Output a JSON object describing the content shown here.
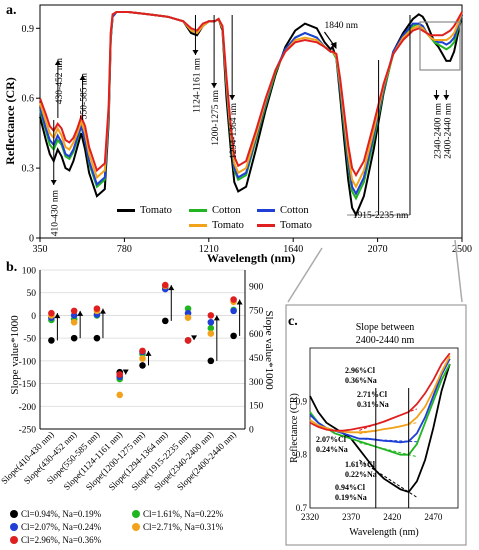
{
  "panels": {
    "a": {
      "label": "a."
    },
    "b": {
      "label": "b."
    },
    "c": {
      "label": "c."
    }
  },
  "chart_data": [
    {
      "type": "line",
      "panel": "a",
      "xlabel": "Wavelength (nm)",
      "ylabel": "Reflectance (CR)",
      "xlim": [
        350,
        2500
      ],
      "ylim": [
        0,
        1.0
      ],
      "xticks": [
        "350",
        "780",
        "1210",
        "1640",
        "2070",
        "2500"
      ],
      "yticks": [
        "0",
        "0.3",
        "0.6",
        "0.9"
      ],
      "legend": [
        {
          "name": "Tomato",
          "color": "#000000"
        },
        {
          "name": "Cotton",
          "color": "#21b521"
        },
        {
          "name": "Cotton",
          "color": "#1f3fd6"
        },
        {
          "name": "Tomato",
          "color": "#f2a21b"
        },
        {
          "name": "Tomato",
          "color": "#e02020"
        }
      ],
      "annotations": [
        {
          "text": "410-430 nm",
          "x": 420
        },
        {
          "text": "430-452 nm",
          "x": 441
        },
        {
          "text": "550-585 nm",
          "x": 567
        },
        {
          "text": "1124-1161 nm",
          "x": 1142
        },
        {
          "text": "1200-1275 nm",
          "x": 1237
        },
        {
          "text": "1294-1364 nm",
          "x": 1329
        },
        {
          "text": "1840 nm",
          "x": 1840
        },
        {
          "text": "1915-2235 nm",
          "x": 2075
        },
        {
          "text": "2340-2400 nm",
          "x": 2370
        },
        {
          "text": "2400-2440 nm",
          "x": 2420
        }
      ],
      "x": [
        350,
        380,
        400,
        420,
        440,
        460,
        480,
        500,
        520,
        540,
        560,
        580,
        600,
        640,
        680,
        700,
        710,
        720,
        740,
        800,
        900,
        1000,
        1080,
        1120,
        1150,
        1180,
        1210,
        1240,
        1260,
        1280,
        1300,
        1320,
        1340,
        1360,
        1400,
        1450,
        1500,
        1550,
        1600,
        1650,
        1700,
        1760,
        1800,
        1830,
        1840,
        1860,
        1880,
        1900,
        1920,
        1940,
        1960,
        2000,
        2050,
        2100,
        2150,
        2200,
        2250,
        2280,
        2300,
        2320,
        2340,
        2360,
        2380,
        2400,
        2420,
        2440,
        2460,
        2480,
        2500
      ],
      "series": [
        {
          "color": "#000000",
          "values": [
            0.52,
            0.42,
            0.36,
            0.33,
            0.38,
            0.35,
            0.3,
            0.29,
            0.33,
            0.39,
            0.45,
            0.38,
            0.28,
            0.18,
            0.21,
            0.5,
            0.85,
            0.95,
            0.97,
            0.97,
            0.96,
            0.95,
            0.93,
            0.88,
            0.87,
            0.91,
            0.93,
            0.93,
            0.94,
            0.89,
            0.6,
            0.4,
            0.24,
            0.2,
            0.22,
            0.38,
            0.55,
            0.7,
            0.82,
            0.89,
            0.92,
            0.9,
            0.84,
            0.81,
            0.82,
            0.77,
            0.6,
            0.42,
            0.25,
            0.13,
            0.1,
            0.18,
            0.38,
            0.62,
            0.8,
            0.88,
            0.94,
            0.96,
            0.95,
            0.92,
            0.88,
            0.84,
            0.82,
            0.79,
            0.76,
            0.76,
            0.8,
            0.88,
            0.96
          ]
        },
        {
          "color": "#21b521",
          "values": [
            0.55,
            0.46,
            0.4,
            0.38,
            0.42,
            0.4,
            0.35,
            0.34,
            0.37,
            0.42,
            0.48,
            0.42,
            0.32,
            0.22,
            0.25,
            0.52,
            0.85,
            0.95,
            0.97,
            0.97,
            0.96,
            0.95,
            0.93,
            0.89,
            0.88,
            0.91,
            0.93,
            0.93,
            0.94,
            0.9,
            0.65,
            0.45,
            0.29,
            0.25,
            0.27,
            0.42,
            0.57,
            0.71,
            0.81,
            0.86,
            0.88,
            0.86,
            0.82,
            0.8,
            0.8,
            0.77,
            0.63,
            0.47,
            0.31,
            0.2,
            0.17,
            0.24,
            0.42,
            0.63,
            0.79,
            0.86,
            0.91,
            0.92,
            0.91,
            0.88,
            0.86,
            0.84,
            0.83,
            0.82,
            0.81,
            0.82,
            0.84,
            0.9,
            0.96
          ]
        },
        {
          "color": "#1f3fd6",
          "values": [
            0.56,
            0.47,
            0.42,
            0.4,
            0.44,
            0.41,
            0.36,
            0.35,
            0.38,
            0.43,
            0.48,
            0.42,
            0.33,
            0.23,
            0.26,
            0.53,
            0.86,
            0.95,
            0.97,
            0.97,
            0.96,
            0.95,
            0.93,
            0.89,
            0.88,
            0.91,
            0.93,
            0.93,
            0.94,
            0.9,
            0.66,
            0.46,
            0.3,
            0.26,
            0.28,
            0.43,
            0.58,
            0.72,
            0.81,
            0.86,
            0.88,
            0.86,
            0.82,
            0.8,
            0.8,
            0.78,
            0.64,
            0.49,
            0.33,
            0.22,
            0.19,
            0.26,
            0.44,
            0.64,
            0.8,
            0.87,
            0.92,
            0.92,
            0.91,
            0.88,
            0.86,
            0.85,
            0.84,
            0.84,
            0.83,
            0.84,
            0.86,
            0.91,
            0.96
          ]
        },
        {
          "color": "#f2a21b",
          "values": [
            0.58,
            0.5,
            0.45,
            0.43,
            0.47,
            0.44,
            0.39,
            0.38,
            0.41,
            0.45,
            0.5,
            0.45,
            0.36,
            0.26,
            0.29,
            0.55,
            0.87,
            0.96,
            0.97,
            0.97,
            0.96,
            0.95,
            0.93,
            0.89,
            0.88,
            0.91,
            0.93,
            0.93,
            0.94,
            0.9,
            0.67,
            0.47,
            0.32,
            0.28,
            0.3,
            0.44,
            0.59,
            0.72,
            0.8,
            0.85,
            0.86,
            0.85,
            0.82,
            0.8,
            0.8,
            0.78,
            0.66,
            0.51,
            0.36,
            0.25,
            0.22,
            0.29,
            0.46,
            0.65,
            0.79,
            0.86,
            0.9,
            0.91,
            0.9,
            0.88,
            0.86,
            0.85,
            0.85,
            0.85,
            0.85,
            0.86,
            0.88,
            0.92,
            0.97
          ]
        },
        {
          "color": "#e02020",
          "values": [
            0.6,
            0.53,
            0.48,
            0.46,
            0.49,
            0.47,
            0.42,
            0.41,
            0.43,
            0.47,
            0.52,
            0.48,
            0.39,
            0.29,
            0.32,
            0.57,
            0.88,
            0.96,
            0.97,
            0.97,
            0.96,
            0.95,
            0.93,
            0.9,
            0.89,
            0.92,
            0.93,
            0.93,
            0.94,
            0.91,
            0.69,
            0.5,
            0.35,
            0.31,
            0.33,
            0.46,
            0.6,
            0.72,
            0.8,
            0.84,
            0.85,
            0.84,
            0.82,
            0.8,
            0.8,
            0.79,
            0.68,
            0.54,
            0.4,
            0.3,
            0.27,
            0.33,
            0.49,
            0.66,
            0.79,
            0.85,
            0.89,
            0.9,
            0.89,
            0.88,
            0.87,
            0.87,
            0.87,
            0.87,
            0.88,
            0.89,
            0.91,
            0.94,
            0.97
          ]
        }
      ]
    },
    {
      "type": "scatter",
      "panel": "b",
      "ylabel": "Slope value*1000",
      "y2label": "Slope value*1000",
      "ylim": [
        -250,
        100
      ],
      "y2lim": [
        0,
        1000
      ],
      "yticks": [
        "-250",
        "-200",
        "-150",
        "-100",
        "-50",
        "0",
        "50",
        "100"
      ],
      "y2ticks": [
        "0",
        "150",
        "300",
        "450",
        "600",
        "750",
        "900"
      ],
      "categories": [
        "Slope(410-430 nm)",
        "Slope(430-452 nm)",
        "Slope(550-585 nm)",
        "Slope(1124-1161 nm)",
        "Slope(1200-1275 nm)",
        "Slope(1294-1364 nm)",
        "Slope(1915-2235 nm)",
        "Slope(2340-2400 nm)",
        "Slope(2400-2440 nm)"
      ],
      "legend": [
        {
          "text": "Cl=0.94%, Na=0.19%",
          "color": "#000000"
        },
        {
          "text": "Cl=1.61%, Na=0.22%",
          "color": "#21b521"
        },
        {
          "text": "Cl=2.07%, Na=0.24%",
          "color": "#1f3fd6"
        },
        {
          "text": "Cl=2.71%, Na=0.31%",
          "color": "#f2a21b"
        },
        {
          "text": "Cl=2.96%, Na=0.36%",
          "color": "#e02020"
        }
      ],
      "series": [
        {
          "name": "Cl=0.94%, Na=0.19%",
          "color": "#000000",
          "values": [
            -55,
            -50,
            -50,
            -125,
            -110,
            680,
            -55,
            -100,
            -45
          ]
        },
        {
          "name": "Cl=1.61%, Na=0.22%",
          "color": "#21b521",
          "values": [
            -10,
            -8,
            0,
            -140,
            -85,
            890,
            15,
            -28,
            12
          ]
        },
        {
          "name": "Cl=2.07%, Na=0.24%",
          "color": "#1f3fd6",
          "values": [
            -5,
            0,
            2,
            -135,
            -80,
            880,
            5,
            -15,
            10
          ]
        },
        {
          "name": "Cl=2.71%, Na=0.31%",
          "color": "#f2a21b",
          "values": [
            0,
            -15,
            10,
            -175,
            -95,
            900,
            -5,
            -40,
            30
          ]
        },
        {
          "name": "Cl=2.96%, Na=0.36%",
          "color": "#e02020",
          "values": [
            5,
            10,
            15,
            -130,
            -78,
            905,
            -55,
            0,
            35
          ]
        }
      ],
      "right_axis_category": "Slope(1294-1364 nm)"
    },
    {
      "type": "line",
      "panel": "c",
      "title": "Slope between 2400-2440 nm",
      "xlabel": "Wavelength (nm)",
      "ylabel": "Reflectance (CR)",
      "xlim": [
        2320,
        2500
      ],
      "ylim": [
        0.7,
        1.0
      ],
      "xticks": [
        "2320",
        "2370",
        "2420",
        "2470"
      ],
      "yticks": [
        "0.7",
        "0.8",
        "0.9"
      ],
      "labels": [
        {
          "text1": "2.96%Cl",
          "text2": "0.36%Na",
          "color": "#e02020"
        },
        {
          "text1": "2.71%Cl",
          "text2": "0.31%Na",
          "color": "#f2a21b"
        },
        {
          "text1": "2.07%Cl",
          "text2": "0.24%Na",
          "color": "#1f3fd6"
        },
        {
          "text1": "1.61%Cl",
          "text2": "0.22%Na",
          "color": "#21b521"
        },
        {
          "text1": "0.94%Cl",
          "text2": "0.19%Na",
          "color": "#000000"
        }
      ],
      "x": [
        2320,
        2330,
        2340,
        2350,
        2360,
        2370,
        2380,
        2390,
        2400,
        2410,
        2420,
        2430,
        2440,
        2450,
        2460,
        2470,
        2480,
        2490
      ],
      "series": [
        {
          "color": "#000000",
          "values": [
            0.91,
            0.88,
            0.86,
            0.85,
            0.84,
            0.83,
            0.81,
            0.79,
            0.77,
            0.755,
            0.745,
            0.735,
            0.73,
            0.75,
            0.79,
            0.85,
            0.92,
            0.97
          ]
        },
        {
          "color": "#21b521",
          "values": [
            0.88,
            0.86,
            0.85,
            0.84,
            0.835,
            0.83,
            0.825,
            0.82,
            0.815,
            0.81,
            0.805,
            0.8,
            0.8,
            0.82,
            0.86,
            0.9,
            0.94,
            0.97
          ]
        },
        {
          "color": "#1f3fd6",
          "values": [
            0.875,
            0.86,
            0.85,
            0.845,
            0.84,
            0.835,
            0.83,
            0.83,
            0.828,
            0.826,
            0.825,
            0.823,
            0.825,
            0.84,
            0.87,
            0.91,
            0.95,
            0.98
          ]
        },
        {
          "color": "#f2a21b",
          "values": [
            0.865,
            0.855,
            0.85,
            0.845,
            0.843,
            0.842,
            0.842,
            0.843,
            0.845,
            0.848,
            0.85,
            0.853,
            0.857,
            0.87,
            0.89,
            0.92,
            0.955,
            0.985
          ]
        },
        {
          "color": "#e02020",
          "values": [
            0.86,
            0.852,
            0.847,
            0.845,
            0.845,
            0.847,
            0.85,
            0.853,
            0.857,
            0.862,
            0.868,
            0.874,
            0.88,
            0.895,
            0.915,
            0.94,
            0.97,
            0.99
          ]
        }
      ]
    }
  ]
}
